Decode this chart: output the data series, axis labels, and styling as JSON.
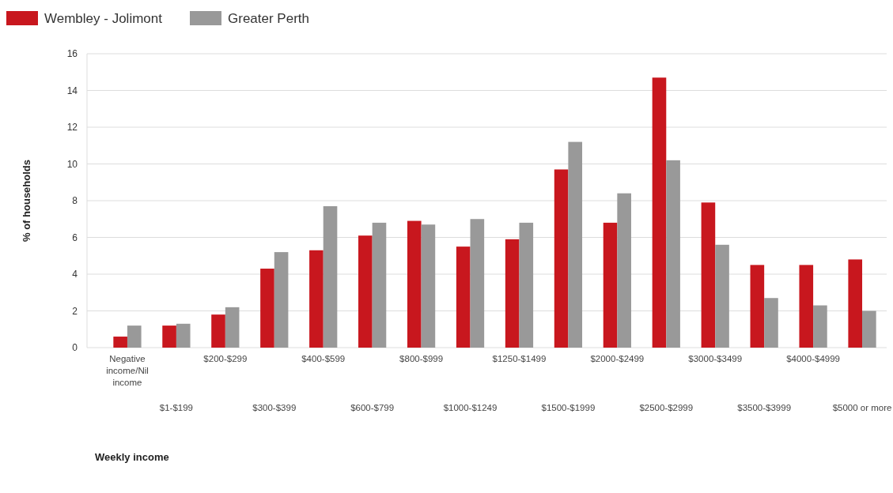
{
  "chart_data": {
    "type": "bar",
    "xlabel": "Weekly income",
    "ylabel": "% of households",
    "categories": [
      "Negative income/Nil income",
      "$1-$199",
      "$200-$299",
      "$300-$399",
      "$400-$599",
      "$600-$799",
      "$800-$999",
      "$1000-$1249",
      "$1250-$1499",
      "$1500-$1999",
      "$2000-$2499",
      "$2500-$2999",
      "$3000-$3499",
      "$3500-$3999",
      "$4000-$4999",
      "$5000 or more"
    ],
    "series": [
      {
        "name": "Wembley - Jolimont",
        "color": "#c8171e",
        "values": [
          0.6,
          1.2,
          1.8,
          4.3,
          5.3,
          6.1,
          6.9,
          5.5,
          5.9,
          9.7,
          6.8,
          14.7,
          7.9,
          4.5,
          4.5,
          4.8
        ]
      },
      {
        "name": "Greater Perth",
        "color": "#999999",
        "values": [
          1.2,
          1.3,
          2.2,
          5.2,
          7.7,
          6.8,
          6.7,
          7.0,
          6.8,
          11.2,
          8.4,
          10.2,
          5.6,
          2.7,
          2.3,
          2.0
        ]
      }
    ],
    "ylim": [
      0,
      16
    ],
    "yticks": [
      0,
      2,
      4,
      6,
      8,
      10,
      12,
      14,
      16
    ],
    "grid": "y",
    "legend": "top left"
  }
}
